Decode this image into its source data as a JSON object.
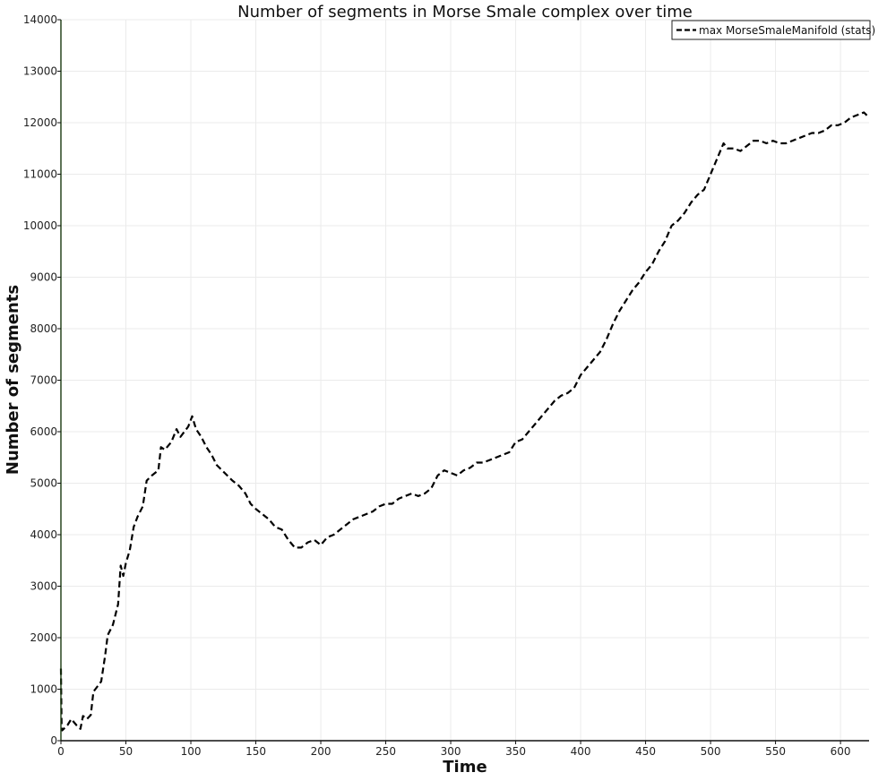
{
  "chart_data": {
    "type": "line",
    "title": "Number of segments in Morse Smale complex over time",
    "xlabel": "Time",
    "ylabel": "Number of segments",
    "xlim": [
      0,
      622
    ],
    "ylim": [
      0,
      14000
    ],
    "x_ticks": [
      0,
      50,
      100,
      150,
      200,
      250,
      300,
      350,
      400,
      450,
      500,
      550,
      600
    ],
    "y_ticks": [
      0,
      1000,
      2000,
      3000,
      4000,
      5000,
      6000,
      7000,
      8000,
      9000,
      10000,
      11000,
      12000,
      13000,
      14000
    ],
    "grid": true,
    "legend_position": "top-right",
    "series": [
      {
        "name": "max MorseSmaleManifold (stats)",
        "color": "#000000",
        "style": "dashed",
        "points": [
          [
            0,
            1400
          ],
          [
            0.5,
            300
          ],
          [
            1,
            200
          ],
          [
            5,
            300
          ],
          [
            8,
            420
          ],
          [
            12,
            300
          ],
          [
            15,
            230
          ],
          [
            17,
            480
          ],
          [
            20,
            420
          ],
          [
            23,
            500
          ],
          [
            25,
            950
          ],
          [
            28,
            1050
          ],
          [
            31,
            1150
          ],
          [
            34,
            1650
          ],
          [
            36,
            2050
          ],
          [
            40,
            2250
          ],
          [
            44,
            2650
          ],
          [
            46,
            3400
          ],
          [
            48,
            3200
          ],
          [
            50,
            3450
          ],
          [
            53,
            3700
          ],
          [
            56,
            4150
          ],
          [
            59,
            4350
          ],
          [
            63,
            4550
          ],
          [
            66,
            5050
          ],
          [
            70,
            5150
          ],
          [
            75,
            5250
          ],
          [
            77,
            5700
          ],
          [
            80,
            5650
          ],
          [
            85,
            5800
          ],
          [
            89,
            6050
          ],
          [
            92,
            5900
          ],
          [
            95,
            6000
          ],
          [
            98,
            6100
          ],
          [
            101,
            6300
          ],
          [
            104,
            6050
          ],
          [
            108,
            5900
          ],
          [
            112,
            5700
          ],
          [
            116,
            5550
          ],
          [
            120,
            5350
          ],
          [
            124,
            5250
          ],
          [
            128,
            5150
          ],
          [
            132,
            5050
          ],
          [
            137,
            4950
          ],
          [
            142,
            4800
          ],
          [
            146,
            4600
          ],
          [
            150,
            4500
          ],
          [
            155,
            4400
          ],
          [
            160,
            4300
          ],
          [
            165,
            4150
          ],
          [
            170,
            4100
          ],
          [
            175,
            3900
          ],
          [
            180,
            3750
          ],
          [
            185,
            3750
          ],
          [
            190,
            3850
          ],
          [
            195,
            3900
          ],
          [
            200,
            3800
          ],
          [
            205,
            3950
          ],
          [
            210,
            4000
          ],
          [
            215,
            4100
          ],
          [
            220,
            4200
          ],
          [
            225,
            4300
          ],
          [
            230,
            4350
          ],
          [
            235,
            4400
          ],
          [
            240,
            4450
          ],
          [
            245,
            4550
          ],
          [
            250,
            4600
          ],
          [
            255,
            4600
          ],
          [
            260,
            4700
          ],
          [
            265,
            4750
          ],
          [
            270,
            4800
          ],
          [
            275,
            4750
          ],
          [
            280,
            4800
          ],
          [
            285,
            4900
          ],
          [
            290,
            5150
          ],
          [
            295,
            5250
          ],
          [
            300,
            5200
          ],
          [
            305,
            5150
          ],
          [
            310,
            5250
          ],
          [
            315,
            5300
          ],
          [
            320,
            5400
          ],
          [
            325,
            5400
          ],
          [
            330,
            5450
          ],
          [
            335,
            5500
          ],
          [
            340,
            5550
          ],
          [
            345,
            5600
          ],
          [
            350,
            5800
          ],
          [
            355,
            5850
          ],
          [
            360,
            6000
          ],
          [
            365,
            6150
          ],
          [
            370,
            6300
          ],
          [
            375,
            6450
          ],
          [
            380,
            6600
          ],
          [
            385,
            6700
          ],
          [
            390,
            6750
          ],
          [
            395,
            6850
          ],
          [
            400,
            7100
          ],
          [
            405,
            7250
          ],
          [
            410,
            7400
          ],
          [
            415,
            7550
          ],
          [
            420,
            7800
          ],
          [
            425,
            8100
          ],
          [
            430,
            8350
          ],
          [
            435,
            8550
          ],
          [
            440,
            8750
          ],
          [
            445,
            8900
          ],
          [
            450,
            9100
          ],
          [
            455,
            9250
          ],
          [
            460,
            9500
          ],
          [
            465,
            9700
          ],
          [
            470,
            10000
          ],
          [
            475,
            10100
          ],
          [
            480,
            10250
          ],
          [
            485,
            10450
          ],
          [
            490,
            10600
          ],
          [
            495,
            10700
          ],
          [
            500,
            11000
          ],
          [
            505,
            11300
          ],
          [
            510,
            11600
          ],
          [
            513,
            11500
          ],
          [
            518,
            11500
          ],
          [
            523,
            11450
          ],
          [
            528,
            11550
          ],
          [
            533,
            11650
          ],
          [
            538,
            11650
          ],
          [
            543,
            11600
          ],
          [
            548,
            11650
          ],
          [
            553,
            11600
          ],
          [
            558,
            11600
          ],
          [
            563,
            11650
          ],
          [
            568,
            11700
          ],
          [
            573,
            11750
          ],
          [
            578,
            11800
          ],
          [
            583,
            11800
          ],
          [
            588,
            11850
          ],
          [
            593,
            11950
          ],
          [
            598,
            11950
          ],
          [
            603,
            12000
          ],
          [
            608,
            12100
          ],
          [
            613,
            12150
          ],
          [
            618,
            12200
          ],
          [
            622,
            12100
          ]
        ]
      }
    ]
  }
}
